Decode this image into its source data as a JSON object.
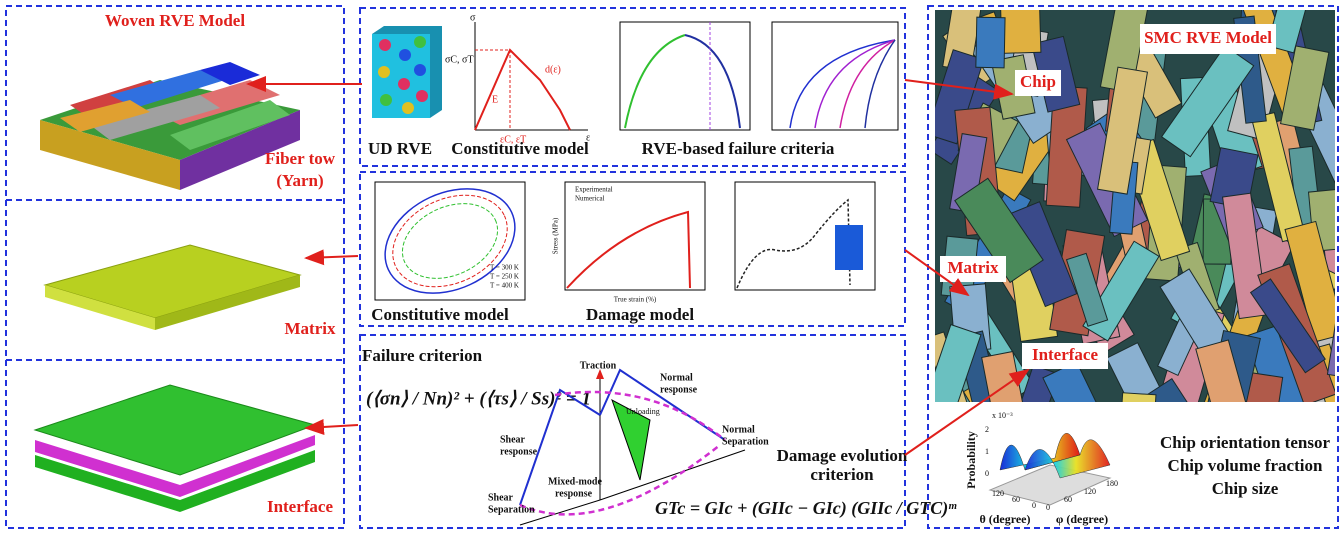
{
  "woven_panel": {
    "title": "Woven RVE Model",
    "fiber_tow": [
      "Fiber tow",
      "(Yarn)"
    ],
    "matrix": "Matrix",
    "interface": "Interface"
  },
  "micro_top": {
    "captions": [
      "UD RVE",
      "Constitutive model",
      "RVE-based failure criteria"
    ],
    "sketch": {
      "y_axis": "σ",
      "x_axis": "ε",
      "modulus": "E",
      "damage": "d(ε)",
      "strain": "εC, εT",
      "strength": "σC, σT"
    }
  },
  "micro_middle": {
    "captions": [
      "Constitutive model",
      "Damage model"
    ],
    "temperature_legend": [
      "T = 300 K",
      "T = 250 K",
      "T = 400 K"
    ],
    "damage_legend": [
      "Experimental",
      "Numerical"
    ],
    "x_axis": "True strain (%)",
    "y_axis": "Stress (MPa)"
  },
  "micro_bottom": {
    "failure_title": "Failure criterion",
    "failure_formula": "(⟨σn⟩ / Nn)² + (⟨τs⟩ / Ss)² = 1",
    "traction": "Traction",
    "normal_response": [
      "Normal",
      "response"
    ],
    "normal_separation": [
      "Normal",
      "Separation"
    ],
    "shear_response": [
      "Shear",
      "response"
    ],
    "shear_separation": [
      "Shear",
      "Separation"
    ],
    "mixed_mode": [
      "Mixed-mode",
      "response"
    ],
    "unloading": "Unloading",
    "damage_title": [
      "Damage evolution",
      "criterion"
    ],
    "damage_formula": "GTc = GIc + (GIIc − GIc) (GIIc / GTC)ᵐ"
  },
  "smc_panel": {
    "title": "SMC RVE Model",
    "chip": "Chip",
    "matrix": "Matrix",
    "interface": "Interface",
    "features": [
      "Chip orientation tensor",
      "Chip volume fraction",
      "Chip size"
    ],
    "plot": {
      "z_axis": "Probability",
      "x_axis": "θ (degree)",
      "y_axis": "φ (degree)",
      "scale": "x 10⁻³",
      "z_ticks": [
        "2",
        "1",
        "0"
      ],
      "theta_ticks": [
        "120",
        "60",
        "0"
      ],
      "phi_ticks": [
        "0",
        "60",
        "120",
        "180"
      ]
    }
  }
}
